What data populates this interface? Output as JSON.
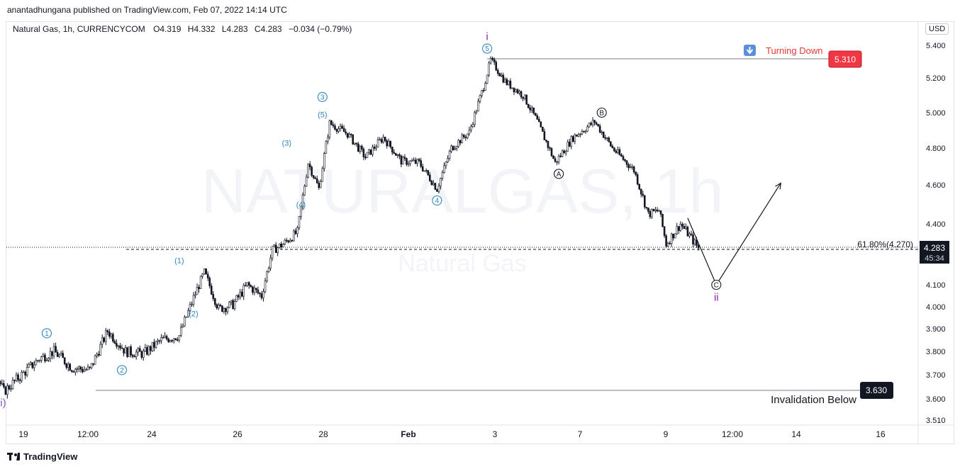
{
  "header": {
    "publisher": "anantadhungana published on TradingView.com, Feb 07, 2022 14:14 UTC",
    "symbol": "Natural Gas, 1h, CURRENCYCOM",
    "open_label": "O",
    "open": "4.319",
    "high_label": "H",
    "high": "4.332",
    "low_label": "L",
    "low": "4.283",
    "close_label": "C",
    "close": "4.283",
    "change": "−0.034 (−0.79%)",
    "currency": "USD"
  },
  "footer": {
    "brand": "TradingView"
  },
  "chart_data": {
    "type": "candlestick",
    "watermark": "NATURALGAS, 1h",
    "watermark_sub": "Natural Gas",
    "y_ticks": [
      "5.400",
      "5.200",
      "5.000",
      "4.800",
      "4.600",
      "4.400",
      "4.100",
      "4.000",
      "3.900",
      "3.800",
      "3.700",
      "3.600",
      "3.510"
    ],
    "x_ticks": [
      "19",
      "12:00",
      "24",
      "26",
      "28",
      "Feb",
      "3",
      "7",
      "9",
      "12:00",
      "14",
      "16"
    ],
    "price_labels": {
      "current": "4.283",
      "countdown": "45:34",
      "high_box": "5.310",
      "low_box": "3.630"
    },
    "annotations": {
      "turning_down": "Turning Down",
      "invalidation": "Invalidation Below",
      "fib": "61.80%(4.270)"
    },
    "wave_labels": [
      {
        "text": "(ii)",
        "color": "#7e57c2",
        "x": "Jan 22 12:00",
        "y": 3.58
      },
      {
        "text": "1",
        "circle": true,
        "color": "#2e86c1",
        "x": "Jan 23 14:00",
        "y": 3.88
      },
      {
        "text": "2",
        "circle": true,
        "color": "#2e86c1",
        "x": "Jan 25 08:00",
        "y": 3.72
      },
      {
        "text": "(1)",
        "color": "#2e86c1",
        "x": "Jan 26 16:00",
        "y": 4.22
      },
      {
        "text": "(2)",
        "color": "#2e86c1",
        "x": "Jan 27 00:00",
        "y": 3.97
      },
      {
        "text": "(3)",
        "color": "#2e86c1",
        "x": "Jan 29 04:00",
        "y": 4.83
      },
      {
        "text": "(4)",
        "color": "#2e86c1",
        "x": "Jan 29 12:00",
        "y": 4.5
      },
      {
        "text": "3",
        "circle": true,
        "color": "#2e86c1",
        "x": "Jan 30 00:00",
        "y": 5.09
      },
      {
        "text": "(5)",
        "color": "#2e86c1",
        "x": "Jan 30 00:00",
        "y": 4.99
      },
      {
        "text": "4",
        "circle": true,
        "color": "#2e86c1",
        "x": "Feb 1 16:00",
        "y": 4.52
      },
      {
        "text": "5",
        "circle": true,
        "color": "#2e86c1",
        "x": "Feb 2 20:00",
        "y": 5.38
      },
      {
        "text": "i",
        "color": "#8e24aa",
        "x": "Feb 2 20:00",
        "y": 5.45
      },
      {
        "text": "A",
        "circle": true,
        "color": "#131722",
        "x": "Feb 4 12:00",
        "y": 4.66
      },
      {
        "text": "B",
        "circle": true,
        "color": "#131722",
        "x": "Feb 5 12:00",
        "y": 5.0
      },
      {
        "text": "C",
        "circle": true,
        "color": "#131722",
        "x": "Feb 8 04:00",
        "y": 4.1
      },
      {
        "text": "ii",
        "color": "#8e24aa",
        "x": "Feb 8 04:00",
        "y": 4.04
      }
    ],
    "wave_path": [
      {
        "x": "Feb 7 12:00",
        "y": 4.43
      },
      {
        "x": "Feb 8 04:00",
        "y": 4.1
      },
      {
        "x": "Feb 9 16:00",
        "y": 4.61
      }
    ],
    "ohlc_path": [
      [
        "Jan 19 00:00",
        4.14
      ],
      [
        "Jan 19 12:00",
        4.12
      ],
      [
        "Jan 20 00:00",
        4.06
      ],
      [
        "Jan 20 12:00",
        4.08
      ],
      [
        "Jan 21 00:00",
        3.9
      ],
      [
        "Jan 21 12:00",
        3.84
      ],
      [
        "Jan 22 00:00",
        3.82
      ],
      [
        "Jan 22 08:00",
        3.73
      ],
      [
        "Jan 22 14:00",
        3.63
      ],
      [
        "Jan 23 00:00",
        3.7
      ],
      [
        "Jan 23 10:00",
        3.77
      ],
      [
        "Jan 23 18:00",
        3.8
      ],
      [
        "Jan 24 04:00",
        3.73
      ],
      [
        "Jan 24 14:00",
        3.72
      ],
      [
        "Jan 25 00:00",
        3.89
      ],
      [
        "Jan 25 10:00",
        3.8
      ],
      [
        "Jan 25 20:00",
        3.79
      ],
      [
        "Jan 26 06:00",
        3.85
      ],
      [
        "Jan 26 16:00",
        3.87
      ],
      [
        "Jan 27 00:00",
        4.04
      ],
      [
        "Jan 27 06:00",
        4.16
      ],
      [
        "Jan 27 14:00",
        3.99
      ],
      [
        "Jan 27 22:00",
        4.01
      ],
      [
        "Jan 28 06:00",
        4.1
      ],
      [
        "Jan 28 14:00",
        4.05
      ],
      [
        "Jan 28 20:00",
        4.27
      ],
      [
        "Jan 29 02:00",
        4.3
      ],
      [
        "Jan 29 10:00",
        4.36
      ],
      [
        "Jan 29 16:00",
        4.72
      ],
      [
        "Jan 29 22:00",
        4.58
      ],
      [
        "Jan 30 04:00",
        4.94
      ],
      [
        "Jan 30 14:00",
        4.88
      ],
      [
        "Jan 31 00:00",
        4.75
      ],
      [
        "Jan 31 10:00",
        4.86
      ],
      [
        "Jan 31 20:00",
        4.73
      ],
      [
        "Feb 1 06:00",
        4.72
      ],
      [
        "Feb 1 16:00",
        4.58
      ],
      [
        "Feb 2 00:00",
        4.8
      ],
      [
        "Feb 2 10:00",
        4.89
      ],
      [
        "Feb 2 18:00",
        5.15
      ],
      [
        "Feb 2 22:00",
        5.31
      ],
      [
        "Feb 3 06:00",
        5.18
      ],
      [
        "Feb 3 16:00",
        5.1
      ],
      [
        "Feb 4 00:00",
        4.95
      ],
      [
        "Feb 4 10:00",
        4.72
      ],
      [
        "Feb 4 20:00",
        4.86
      ],
      [
        "Feb 5 08:00",
        4.95
      ],
      [
        "Feb 5 18:00",
        4.8
      ],
      [
        "Feb 6 06:00",
        4.68
      ],
      [
        "Feb 6 14:00",
        4.45
      ],
      [
        "Feb 6 20:00",
        4.47
      ],
      [
        "Feb 7 00:00",
        4.3
      ],
      [
        "Feb 7 08:00",
        4.4
      ],
      [
        "Feb 7 14:00",
        4.33
      ],
      [
        "Feb 7 18:00",
        4.28
      ]
    ]
  }
}
